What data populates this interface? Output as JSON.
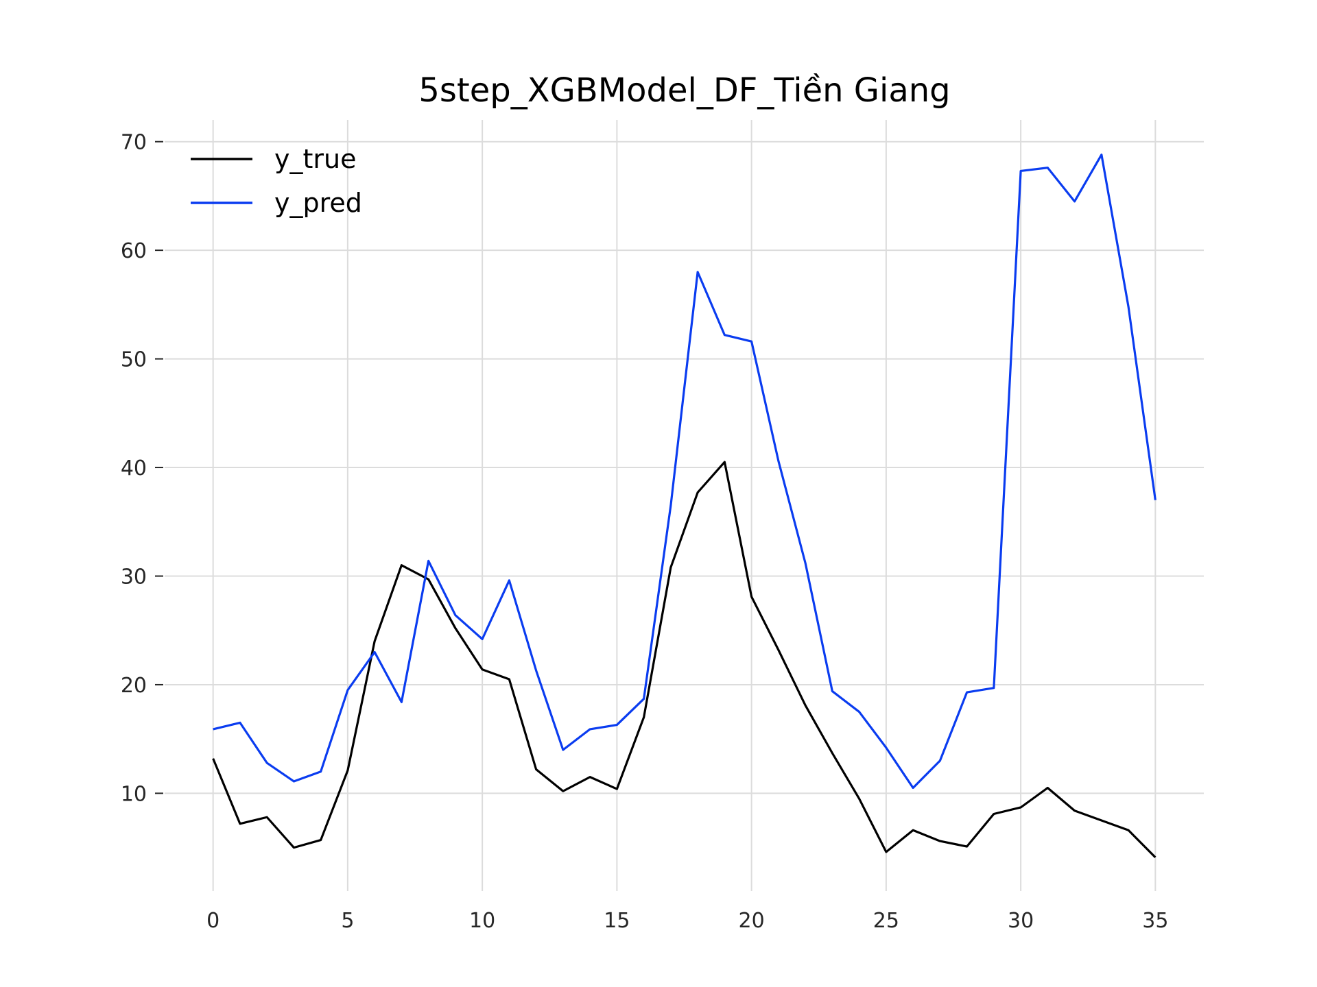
{
  "chart_data": {
    "type": "line",
    "title": "5step_XGBModel_DF_Tiền Giang",
    "xlabel": "",
    "ylabel": "",
    "xlim": [
      -1.8,
      36.8
    ],
    "ylim": [
      1.0,
      72.0
    ],
    "x_ticks": [
      0,
      5,
      10,
      15,
      20,
      25,
      30,
      35
    ],
    "y_ticks": [
      10,
      20,
      30,
      40,
      50,
      60,
      70
    ],
    "grid": true,
    "legend_position": "top-left",
    "x": [
      0,
      1,
      2,
      3,
      4,
      5,
      6,
      7,
      8,
      9,
      10,
      11,
      12,
      13,
      14,
      15,
      16,
      17,
      18,
      19,
      20,
      21,
      22,
      23,
      24,
      25,
      26,
      27,
      28,
      29,
      30,
      31,
      32,
      33,
      34,
      35
    ],
    "series": [
      {
        "name": "y_true",
        "color": "#000000",
        "values": [
          13.2,
          7.2,
          7.8,
          5.0,
          5.7,
          12.1,
          24.0,
          31.0,
          29.7,
          25.2,
          21.4,
          20.5,
          12.2,
          10.2,
          11.5,
          10.4,
          17.0,
          30.8,
          37.7,
          40.5,
          28.1,
          23.2,
          18.1,
          13.7,
          9.5,
          4.6,
          6.6,
          5.6,
          5.1,
          8.1,
          8.7,
          10.5,
          8.4,
          7.5,
          6.6,
          4.1
        ]
      },
      {
        "name": "y_pred",
        "color": "#0a3cf0",
        "values": [
          15.9,
          16.5,
          12.8,
          11.1,
          12.0,
          19.5,
          23.0,
          18.4,
          31.4,
          26.4,
          24.2,
          29.6,
          21.3,
          14.0,
          15.9,
          16.3,
          18.7,
          36.5,
          58.0,
          52.2,
          51.6,
          40.6,
          31.2,
          19.4,
          17.5,
          14.2,
          10.5,
          13.0,
          19.3,
          19.7,
          67.3,
          67.6,
          64.5,
          68.8,
          54.8,
          37.0
        ]
      }
    ]
  }
}
